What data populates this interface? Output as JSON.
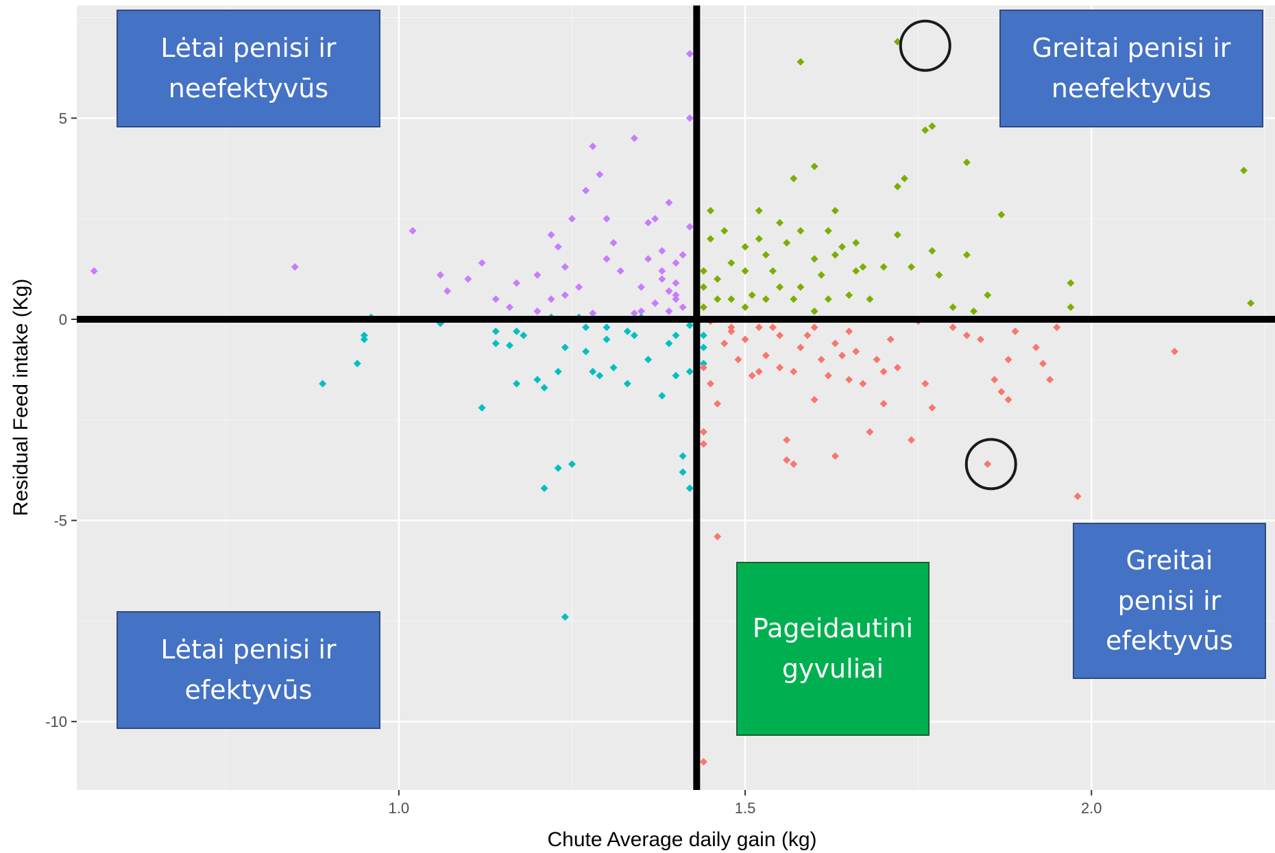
{
  "chart_data": {
    "type": "scatter",
    "xlabel": "Chute Average daily gain (kg)",
    "ylabel": "Residual Feed intake (Kg)",
    "xlim": [
      0.535,
      2.265
    ],
    "ylim": [
      -11.7,
      7.8
    ],
    "x_ticks": [
      {
        "value": 1.0,
        "label": "1.0"
      },
      {
        "value": 1.5,
        "label": "1.5"
      },
      {
        "value": 2.0,
        "label": "2.0"
      }
    ],
    "y_ticks": [
      {
        "value": 5,
        "label": "5"
      },
      {
        "value": 0,
        "label": "0"
      },
      {
        "value": -5,
        "label": "-5"
      },
      {
        "value": -10,
        "label": "-10"
      }
    ],
    "grid": true,
    "background": "#ebebeb",
    "reference_lines": {
      "x": 1.43,
      "y": 0
    },
    "series": [
      {
        "color": "#c77cff",
        "points": [
          [
            0.56,
            1.2
          ],
          [
            0.85,
            1.3
          ],
          [
            1.02,
            2.2
          ],
          [
            1.06,
            1.1
          ],
          [
            1.07,
            0.7
          ],
          [
            1.1,
            1.0
          ],
          [
            1.12,
            1.4
          ],
          [
            1.14,
            0.5
          ],
          [
            1.16,
            0.3
          ],
          [
            1.17,
            0.9
          ],
          [
            1.2,
            1.1
          ],
          [
            1.22,
            0.5
          ],
          [
            1.22,
            2.1
          ],
          [
            1.23,
            1.8
          ],
          [
            1.24,
            1.3
          ],
          [
            1.24,
            0.6
          ],
          [
            1.25,
            2.5
          ],
          [
            1.26,
            0.8
          ],
          [
            1.27,
            3.2
          ],
          [
            1.28,
            4.3
          ],
          [
            1.29,
            3.6
          ],
          [
            1.3,
            1.5
          ],
          [
            1.3,
            2.5
          ],
          [
            1.31,
            1.9
          ],
          [
            1.32,
            1.2
          ],
          [
            1.34,
            4.5
          ],
          [
            1.35,
            0.8
          ],
          [
            1.36,
            1.5
          ],
          [
            1.37,
            2.5
          ],
          [
            1.37,
            0.4
          ],
          [
            1.38,
            1.7
          ],
          [
            1.38,
            1.2
          ],
          [
            1.39,
            0.7
          ],
          [
            1.39,
            2.9
          ],
          [
            1.4,
            0.9
          ],
          [
            1.4,
            1.4
          ],
          [
            1.41,
            1.6
          ],
          [
            1.42,
            2.3
          ],
          [
            1.42,
            6.6
          ],
          [
            1.42,
            5.0
          ],
          [
            1.43,
            1.5
          ],
          [
            1.4,
            0.5
          ],
          [
            1.39,
            0.2
          ],
          [
            1.41,
            0.3
          ],
          [
            1.35,
            0.2
          ],
          [
            1.34,
            0.15
          ],
          [
            1.28,
            0.15
          ],
          [
            1.2,
            0.2
          ],
          [
            1.38,
            1.0
          ],
          [
            1.36,
            2.4
          ],
          [
            1.4,
            0.6
          ]
        ]
      },
      {
        "color": "#7cae00",
        "points": [
          [
            1.45,
            2.7
          ],
          [
            1.45,
            2.0
          ],
          [
            1.46,
            1.0
          ],
          [
            1.47,
            2.2
          ],
          [
            1.48,
            1.4
          ],
          [
            1.48,
            0.5
          ],
          [
            1.5,
            1.8
          ],
          [
            1.5,
            1.2
          ],
          [
            1.51,
            0.6
          ],
          [
            1.52,
            2.0
          ],
          [
            1.52,
            2.7
          ],
          [
            1.53,
            1.6
          ],
          [
            1.54,
            1.2
          ],
          [
            1.55,
            2.4
          ],
          [
            1.56,
            1.9
          ],
          [
            1.57,
            0.5
          ],
          [
            1.57,
            3.5
          ],
          [
            1.58,
            6.4
          ],
          [
            1.58,
            2.2
          ],
          [
            1.58,
            0.8
          ],
          [
            1.6,
            1.5
          ],
          [
            1.6,
            3.8
          ],
          [
            1.61,
            1.1
          ],
          [
            1.62,
            2.2
          ],
          [
            1.63,
            2.7
          ],
          [
            1.63,
            1.6
          ],
          [
            1.64,
            1.8
          ],
          [
            1.65,
            0.6
          ],
          [
            1.66,
            1.9
          ],
          [
            1.67,
            1.3
          ],
          [
            1.68,
            0.5
          ],
          [
            1.7,
            1.3
          ],
          [
            1.72,
            2.1
          ],
          [
            1.72,
            3.3
          ],
          [
            1.73,
            3.5
          ],
          [
            1.74,
            1.3
          ],
          [
            1.72,
            6.9
          ],
          [
            1.76,
            4.7
          ],
          [
            1.77,
            4.8
          ],
          [
            1.77,
            1.7
          ],
          [
            1.78,
            1.1
          ],
          [
            1.8,
            0.3
          ],
          [
            1.82,
            1.6
          ],
          [
            1.82,
            3.9
          ],
          [
            1.83,
            0.2
          ],
          [
            1.85,
            0.6
          ],
          [
            1.87,
            2.6
          ],
          [
            1.97,
            0.9
          ],
          [
            1.97,
            0.3
          ],
          [
            2.22,
            3.7
          ],
          [
            2.23,
            0.4
          ],
          [
            1.44,
            0.8
          ],
          [
            1.44,
            1.2
          ],
          [
            1.44,
            0.3
          ],
          [
            1.46,
            0.5
          ],
          [
            1.5,
            0.3
          ],
          [
            1.55,
            0.8
          ],
          [
            1.6,
            0.2
          ],
          [
            1.62,
            0.5
          ],
          [
            1.66,
            1.2
          ],
          [
            1.53,
            0.5
          ]
        ]
      },
      {
        "color": "#00bfc4",
        "points": [
          [
            0.89,
            -1.6
          ],
          [
            0.94,
            -1.1
          ],
          [
            0.95,
            -0.4
          ],
          [
            0.95,
            -0.5
          ],
          [
            0.96,
            0.05
          ],
          [
            1.06,
            -0.1
          ],
          [
            1.12,
            -2.2
          ],
          [
            1.14,
            -0.3
          ],
          [
            1.14,
            -0.6
          ],
          [
            1.16,
            -0.65
          ],
          [
            1.17,
            -0.3
          ],
          [
            1.17,
            -1.6
          ],
          [
            1.18,
            -0.4
          ],
          [
            1.2,
            -1.5
          ],
          [
            1.21,
            -1.7
          ],
          [
            1.21,
            -4.2
          ],
          [
            1.23,
            -3.7
          ],
          [
            1.23,
            -1.3
          ],
          [
            1.24,
            -0.7
          ],
          [
            1.24,
            -7.4
          ],
          [
            1.25,
            -3.6
          ],
          [
            1.27,
            -0.2
          ],
          [
            1.27,
            -0.8
          ],
          [
            1.28,
            -1.3
          ],
          [
            1.29,
            -1.4
          ],
          [
            1.3,
            -0.5
          ],
          [
            1.31,
            -1.2
          ],
          [
            1.33,
            -1.6
          ],
          [
            1.33,
            -0.3
          ],
          [
            1.34,
            -0.4
          ],
          [
            1.36,
            -1.0
          ],
          [
            1.38,
            -1.9
          ],
          [
            1.39,
            -0.6
          ],
          [
            1.4,
            -1.4
          ],
          [
            1.41,
            -3.4
          ],
          [
            1.41,
            -3.8
          ],
          [
            1.42,
            -4.2
          ],
          [
            1.42,
            -1.3
          ],
          [
            1.43,
            -0.9
          ],
          [
            1.43,
            -1.9
          ],
          [
            1.43,
            -2.6
          ],
          [
            1.43,
            -2.8
          ],
          [
            1.44,
            -0.4
          ],
          [
            1.44,
            -0.7
          ],
          [
            1.44,
            -1.1
          ],
          [
            1.35,
            0.05
          ],
          [
            1.3,
            -0.2
          ],
          [
            1.26,
            0.05
          ],
          [
            1.22,
            0.05
          ],
          [
            1.4,
            -0.4
          ],
          [
            1.42,
            -0.15
          ]
        ]
      },
      {
        "color": "#f8766d",
        "points": [
          [
            1.44,
            -1.2
          ],
          [
            1.44,
            -2.8
          ],
          [
            1.44,
            -3.1
          ],
          [
            1.45,
            -1.6
          ],
          [
            1.46,
            -2.1
          ],
          [
            1.46,
            -5.4
          ],
          [
            1.47,
            -0.6
          ],
          [
            1.48,
            -0.3
          ],
          [
            1.49,
            -1.0
          ],
          [
            1.5,
            -0.5
          ],
          [
            1.51,
            -1.4
          ],
          [
            1.52,
            -1.3
          ],
          [
            1.53,
            -0.9
          ],
          [
            1.54,
            -0.2
          ],
          [
            1.55,
            -1.2
          ],
          [
            1.56,
            -3.0
          ],
          [
            1.56,
            -3.5
          ],
          [
            1.57,
            -3.6
          ],
          [
            1.57,
            -1.3
          ],
          [
            1.58,
            -0.7
          ],
          [
            1.59,
            -0.4
          ],
          [
            1.6,
            -2.0
          ],
          [
            1.61,
            -1.0
          ],
          [
            1.62,
            -1.4
          ],
          [
            1.63,
            -3.4
          ],
          [
            1.63,
            -0.6
          ],
          [
            1.64,
            -0.9
          ],
          [
            1.65,
            -1.5
          ],
          [
            1.66,
            -0.8
          ],
          [
            1.67,
            -1.6
          ],
          [
            1.68,
            -2.8
          ],
          [
            1.69,
            -1.0
          ],
          [
            1.7,
            -2.1
          ],
          [
            1.71,
            -0.5
          ],
          [
            1.72,
            -1.2
          ],
          [
            1.74,
            -3.0
          ],
          [
            1.75,
            -0.05
          ],
          [
            1.76,
            -1.6
          ],
          [
            1.77,
            -2.2
          ],
          [
            1.8,
            -0.2
          ],
          [
            1.82,
            -0.4
          ],
          [
            1.84,
            -0.5
          ],
          [
            1.85,
            -3.6
          ],
          [
            1.86,
            -1.5
          ],
          [
            1.87,
            -1.8
          ],
          [
            1.88,
            -2.0
          ],
          [
            1.88,
            -1.0
          ],
          [
            1.89,
            -0.3
          ],
          [
            1.92,
            -0.7
          ],
          [
            1.93,
            -1.1
          ],
          [
            1.94,
            -1.5
          ],
          [
            1.95,
            -0.2
          ],
          [
            1.98,
            -4.4
          ],
          [
            2.12,
            -0.8
          ],
          [
            1.44,
            -11.0
          ],
          [
            1.45,
            -0.05
          ],
          [
            1.48,
            -0.2
          ],
          [
            1.6,
            -0.2
          ],
          [
            1.65,
            -0.3
          ],
          [
            1.7,
            -1.3
          ],
          [
            1.55,
            -0.4
          ],
          [
            1.52,
            -0.2
          ]
        ]
      }
    ],
    "annotations": [
      {
        "x": 1.76,
        "y": 6.8,
        "shape": "circle"
      },
      {
        "x": 1.855,
        "y": -3.6,
        "shape": "circle"
      }
    ]
  },
  "quadrant_labels": {
    "top_left": "Lėtai penisi ir\nneefektyvūs",
    "top_right": "Greitai penisi ir\nneefektyvūs",
    "bottom_left": "Lėtai penisi ir\nefektyvūs",
    "bottom_right": "Greitai\npenisi ir\nefektyvūs",
    "bottom_center": "Pageidautini\ngyvuliai"
  }
}
